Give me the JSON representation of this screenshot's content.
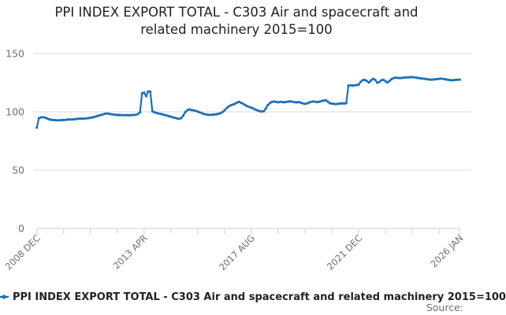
{
  "title": {
    "line1": "PPI INDEX EXPORT TOTAL - C303 Air and spacecraft and",
    "line2": "related machinery 2015=100"
  },
  "legend": {
    "label": "PPI INDEX EXPORT TOTAL - C303 Air and spacecraft and related machinery 2015=100"
  },
  "footer": {
    "source_label": "Source:"
  },
  "colors": {
    "line": "#1d70b8",
    "axis": "#c6d0dc",
    "grid": "#d9d9d9",
    "tick_label": "#6e6e6e",
    "title_text": "#222222"
  },
  "chart_data": {
    "type": "line",
    "title": "PPI INDEX EXPORT TOTAL - C303 Air and spacecraft and related machinery 2015=100",
    "xlabel": "",
    "ylabel": "",
    "frequency": "monthly",
    "x_start": "2008 DEC",
    "x_end": "2026 JAN",
    "ylim": [
      0,
      150
    ],
    "y_ticks": [
      0,
      50,
      100,
      150
    ],
    "x_tick_months": [
      0,
      13,
      26,
      39,
      52,
      65,
      78,
      91,
      104,
      117,
      130,
      143,
      156,
      169,
      182,
      195,
      205
    ],
    "x_tick_labels": {
      "0": "2008 DEC",
      "52": "2013 APR",
      "104": "2017 AUG",
      "156": "2021 DEC",
      "205": "2026 JAN"
    },
    "grid": "horizontal",
    "legend_position": "bottom-left",
    "series": [
      {
        "name": "PPI INDEX EXPORT TOTAL - C303 Air and spacecraft and related machinery 2015=100",
        "values": [
          86.5,
          94.5,
          95.2,
          95.4,
          95.0,
          94.3,
          93.6,
          93.2,
          93.0,
          92.9,
          92.8,
          92.8,
          92.9,
          93.0,
          93.1,
          93.3,
          93.5,
          93.4,
          93.6,
          93.8,
          94.0,
          94.2,
          94.1,
          94.2,
          94.4,
          94.6,
          94.9,
          95.3,
          95.7,
          96.2,
          96.7,
          97.3,
          97.8,
          98.3,
          98.5,
          98.3,
          98.0,
          97.7,
          97.5,
          97.3,
          97.3,
          97.2,
          97.1,
          97.2,
          97.1,
          97.0,
          97.2,
          97.3,
          97.4,
          98.2,
          99.5,
          115.8,
          116.5,
          113.5,
          117.5,
          117.2,
          100.5,
          99.6,
          99.1,
          98.6,
          98.2,
          97.8,
          97.3,
          96.8,
          96.3,
          95.8,
          95.3,
          94.8,
          94.3,
          94.0,
          94.6,
          96.8,
          99.8,
          101.5,
          102.0,
          101.6,
          101.2,
          100.8,
          100.3,
          99.5,
          98.8,
          98.2,
          97.8,
          97.5,
          97.4,
          97.5,
          97.7,
          97.9,
          98.3,
          98.8,
          99.8,
          101.3,
          103.2,
          104.6,
          105.6,
          106.2,
          106.8,
          108.0,
          108.5,
          107.8,
          106.8,
          105.8,
          104.8,
          104.2,
          103.6,
          102.8,
          101.8,
          101.2,
          100.6,
          100.3,
          100.5,
          102.8,
          105.8,
          107.5,
          108.5,
          108.8,
          108.5,
          108.2,
          108.6,
          108.4,
          108.2,
          108.5,
          108.8,
          109.0,
          108.6,
          108.3,
          108.1,
          108.4,
          107.8,
          107.2,
          106.8,
          107.2,
          108.0,
          108.6,
          108.9,
          108.6,
          108.4,
          108.7,
          109.2,
          109.6,
          110.0,
          108.8,
          107.4,
          107.0,
          106.8,
          106.6,
          106.9,
          107.1,
          107.3,
          107.1,
          107.4,
          122.5,
          122.8,
          122.6,
          122.8,
          123.0,
          123.3,
          125.8,
          127.2,
          127.4,
          126.4,
          125.2,
          127.0,
          128.3,
          127.4,
          125.0,
          125.6,
          127.1,
          127.4,
          126.2,
          125.2,
          126.6,
          128.1,
          129.0,
          129.3,
          129.1,
          128.9,
          129.1,
          129.3,
          129.6,
          129.5,
          129.7,
          129.8,
          129.5,
          129.3,
          129.0,
          128.8,
          128.5,
          128.3,
          128.0,
          127.8,
          127.6,
          127.7,
          127.9,
          128.1,
          128.3,
          128.5,
          128.2,
          128.0,
          127.6,
          127.3,
          127.1,
          127.2,
          127.4,
          127.5,
          127.6
        ]
      }
    ]
  }
}
